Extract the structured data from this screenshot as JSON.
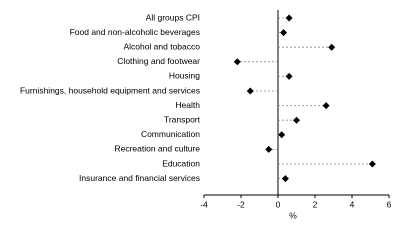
{
  "chart_data": {
    "type": "dot",
    "categories": [
      "All groups CPI",
      "Food and non-alcoholic beverages",
      "Alcohol and tobacco",
      "Clothing and footwear",
      "Housing",
      "Furnishings, household equipment and services",
      "Health",
      "Transport",
      "Communication",
      "Recreation and culture",
      "Education",
      "Insurance and financial services"
    ],
    "values": [
      0.6,
      0.3,
      2.9,
      -2.2,
      0.6,
      -1.5,
      2.6,
      1.0,
      0.2,
      -0.5,
      5.1,
      0.4
    ],
    "color": "#000000",
    "xlabel": "%",
    "xlim": [
      -4,
      6
    ],
    "xticks": [
      -4,
      -2,
      0,
      2,
      4,
      6
    ]
  }
}
